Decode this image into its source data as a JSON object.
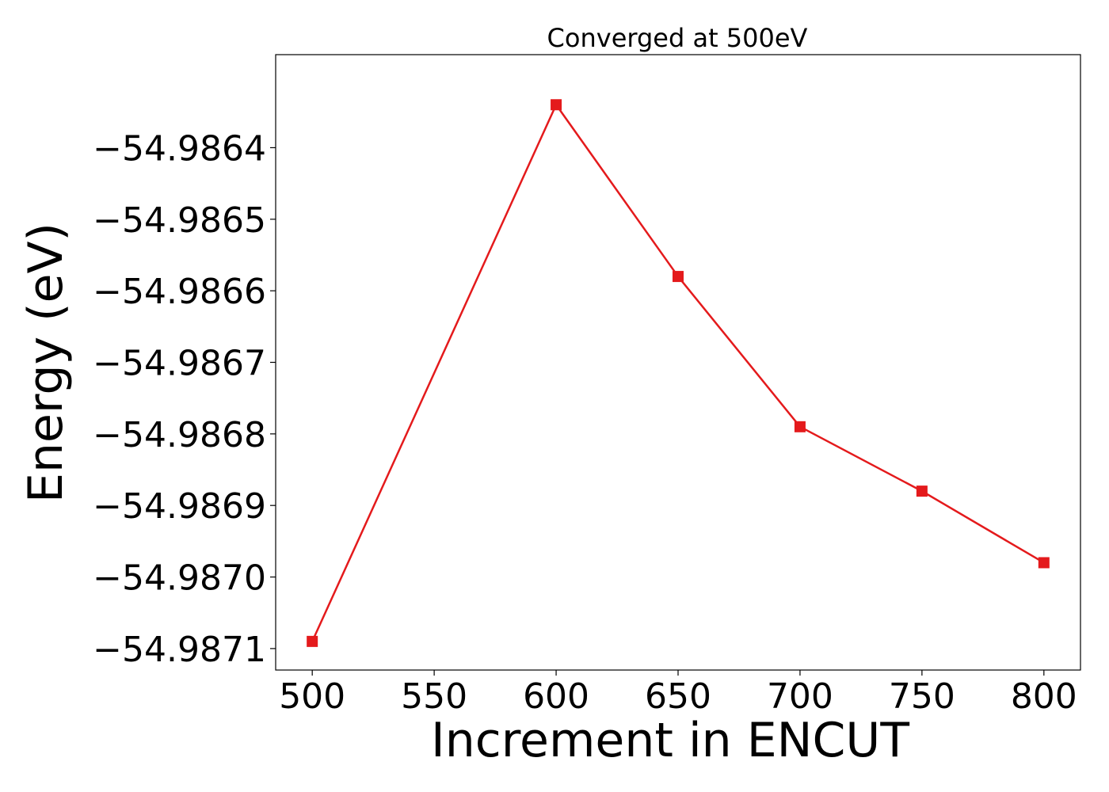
{
  "chart_data": {
    "type": "line",
    "title": "Converged at 500eV",
    "xlabel": "Increment in ENCUT",
    "ylabel": "Energy (eV)",
    "x": [
      500,
      600,
      650,
      700,
      750,
      800
    ],
    "series": [
      {
        "values": [
          -54.98709,
          -54.98634,
          -54.98658,
          -54.98679,
          -54.98688,
          -54.98698
        ],
        "color": "#e41a1c",
        "marker": "square"
      }
    ],
    "xlim": [
      485,
      815
    ],
    "ylim": [
      -54.98713,
      -54.98627
    ],
    "xticks": [
      500,
      550,
      600,
      650,
      700,
      750,
      800
    ],
    "xtick_labels": [
      "500",
      "550",
      "600",
      "650",
      "700",
      "750",
      "800"
    ],
    "yticks": [
      -54.9864,
      -54.9865,
      -54.9866,
      -54.9867,
      -54.9868,
      -54.9869,
      -54.987,
      -54.9871
    ],
    "ytick_labels": [
      "−54.9864",
      "−54.9865",
      "−54.9866",
      "−54.9867",
      "−54.9868",
      "−54.9869",
      "−54.9870",
      "−54.9871"
    ],
    "grid": false,
    "legend": false
  }
}
